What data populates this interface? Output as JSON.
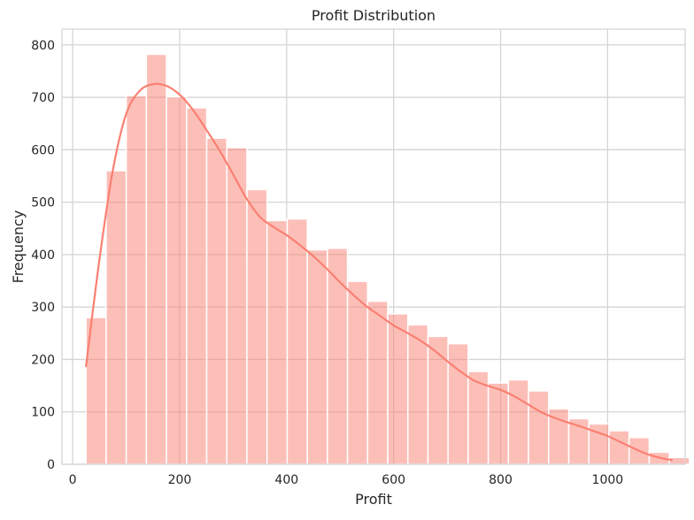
{
  "chart_data": {
    "type": "bar",
    "subtype": "histogram_with_kde",
    "title": "Profit Distribution",
    "xlabel": "Profit",
    "ylabel": "Frequency",
    "xlim": [
      -20,
      1145
    ],
    "ylim": [
      0,
      830
    ],
    "xticks": [
      0,
      200,
      400,
      600,
      800,
      1000
    ],
    "yticks": [
      0,
      100,
      200,
      300,
      400,
      500,
      600,
      700,
      800
    ],
    "grid": true,
    "bar_color": "#fa8072",
    "bar_opacity": 0.5,
    "kde_color": "#fa8072",
    "bins": {
      "start": 25,
      "width": 37.6,
      "counts": [
        280,
        560,
        703,
        782,
        701,
        680,
        622,
        604,
        524,
        465,
        468,
        409,
        412,
        349,
        311,
        287,
        266,
        244,
        230,
        177,
        155,
        161,
        140,
        106,
        87,
        77,
        64,
        51,
        23,
        13
      ]
    },
    "kde": {
      "x": [
        25,
        50,
        75,
        100,
        125,
        150,
        175,
        200,
        225,
        250,
        275,
        300,
        325,
        350,
        375,
        400,
        425,
        450,
        475,
        500,
        525,
        550,
        575,
        600,
        625,
        650,
        675,
        700,
        725,
        750,
        775,
        800,
        825,
        850,
        875,
        900,
        925,
        950,
        975,
        1000,
        1025,
        1050,
        1075,
        1100,
        1120
      ],
      "y": [
        187,
        390,
        560,
        668,
        712,
        725,
        722,
        705,
        676,
        638,
        598,
        553,
        507,
        472,
        453,
        437,
        418,
        397,
        373,
        347,
        323,
        301,
        283,
        265,
        251,
        236,
        218,
        197,
        177,
        160,
        150,
        142,
        130,
        115,
        100,
        89,
        80,
        72,
        63,
        54,
        42,
        30,
        19,
        12,
        8
      ]
    }
  }
}
